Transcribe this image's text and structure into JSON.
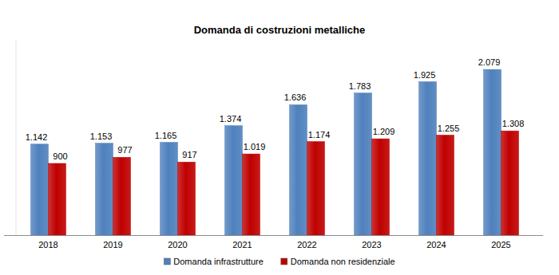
{
  "chart_data": {
    "type": "bar",
    "title": "Domanda di costruzioni metalliche",
    "categories": [
      "2018",
      "2019",
      "2020",
      "2021",
      "2022",
      "2023",
      "2024",
      "2025"
    ],
    "series": [
      {
        "name": "Domanda infrastrutture",
        "color": "#4f81bd",
        "values": [
          1142,
          1153,
          1165,
          1374,
          1636,
          1783,
          1925,
          2079
        ],
        "value_labels": [
          "1.142",
          "1.153",
          "1.165",
          "1.374",
          "1.636",
          "1.783",
          "1.925",
          "2.079"
        ]
      },
      {
        "name": "Domanda non residenziale",
        "color": "#c00000",
        "values": [
          900,
          977,
          917,
          1019,
          1174,
          1209,
          1255,
          1308
        ],
        "value_labels": [
          "900",
          "977",
          "917",
          "1.019",
          "1.174",
          "1.209",
          "1.255",
          "1.308"
        ]
      }
    ],
    "ylim": [
      0,
      2450
    ],
    "grid": false,
    "legend": "bottom",
    "data_labels": true,
    "tick_labels": "x"
  }
}
